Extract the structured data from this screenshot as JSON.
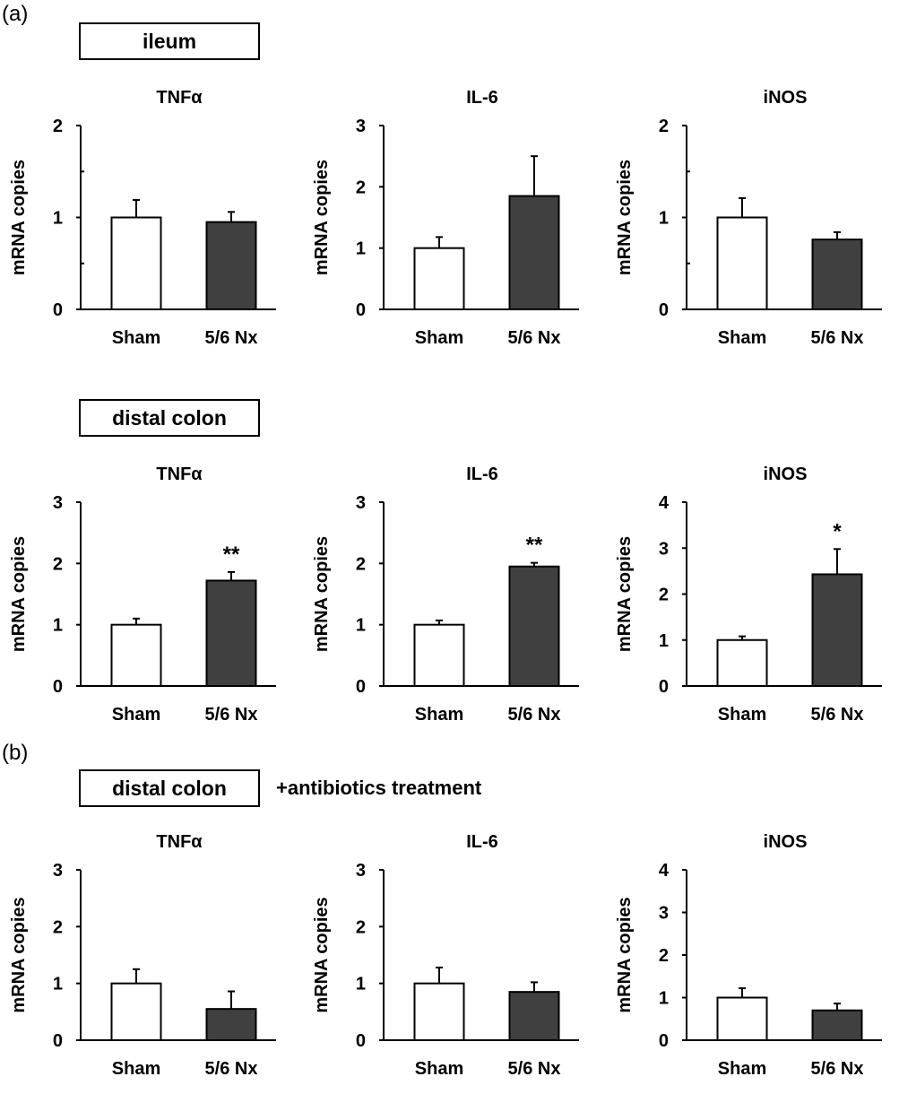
{
  "panels": {
    "a_label": "(a)",
    "b_label": "(b)"
  },
  "sections": {
    "ileum": "ileum",
    "colon_a": "distal colon",
    "colon_b": "distal colon",
    "antibiotics_note": "+antibiotics treatment"
  },
  "colors": {
    "sham_fill": "#ffffff",
    "nx_fill": "#404040",
    "axis": "#000000"
  },
  "chart_data": [
    {
      "type": "bar",
      "title": "TNFα",
      "ylabel": "mRNA copies",
      "categories": [
        "Sham",
        "5/6 Nx"
      ],
      "values": [
        1.0,
        0.95
      ],
      "errors": [
        0.19,
        0.11
      ],
      "ylim": [
        0,
        2
      ],
      "yticks": [
        0,
        1,
        2
      ],
      "significance": [
        "",
        ""
      ]
    },
    {
      "type": "bar",
      "title": "IL-6",
      "ylabel": "mRNA copies",
      "categories": [
        "Sham",
        "5/6 Nx"
      ],
      "values": [
        1.0,
        1.85
      ],
      "errors": [
        0.18,
        0.65
      ],
      "ylim": [
        0,
        3
      ],
      "yticks": [
        0,
        1,
        2,
        3
      ],
      "significance": [
        "",
        ""
      ]
    },
    {
      "type": "bar",
      "title": "iNOS",
      "ylabel": "mRNA copies",
      "categories": [
        "Sham",
        "5/6 Nx"
      ],
      "values": [
        1.0,
        0.76
      ],
      "errors": [
        0.21,
        0.08
      ],
      "ylim": [
        0,
        2
      ],
      "yticks": [
        0,
        1,
        2
      ],
      "significance": [
        "",
        ""
      ]
    },
    {
      "type": "bar",
      "title": "TNFα",
      "ylabel": "mRNA copies",
      "categories": [
        "Sham",
        "5/6 Nx"
      ],
      "values": [
        1.0,
        1.72
      ],
      "errors": [
        0.1,
        0.14
      ],
      "ylim": [
        0,
        3
      ],
      "yticks": [
        0,
        1,
        2,
        3
      ],
      "significance": [
        "",
        "**"
      ]
    },
    {
      "type": "bar",
      "title": "IL-6",
      "ylabel": "mRNA copies",
      "categories": [
        "Sham",
        "5/6 Nx"
      ],
      "values": [
        1.0,
        1.95
      ],
      "errors": [
        0.07,
        0.06
      ],
      "ylim": [
        0,
        3
      ],
      "yticks": [
        0,
        1,
        2,
        3
      ],
      "significance": [
        "",
        "**"
      ]
    },
    {
      "type": "bar",
      "title": "iNOS",
      "ylabel": "mRNA copies",
      "categories": [
        "Sham",
        "5/6 Nx"
      ],
      "values": [
        1.0,
        2.43
      ],
      "errors": [
        0.08,
        0.55
      ],
      "ylim": [
        0,
        4
      ],
      "yticks": [
        0,
        1,
        2,
        3,
        4
      ],
      "significance": [
        "",
        "*"
      ]
    },
    {
      "type": "bar",
      "title": "TNFα",
      "ylabel": "mRNA copies",
      "categories": [
        "Sham",
        "5/6 Nx"
      ],
      "values": [
        1.0,
        0.55
      ],
      "errors": [
        0.25,
        0.31
      ],
      "ylim": [
        0,
        3
      ],
      "yticks": [
        0,
        1,
        2,
        3
      ],
      "significance": [
        "",
        ""
      ]
    },
    {
      "type": "bar",
      "title": "IL-6",
      "ylabel": "mRNA copies",
      "categories": [
        "Sham",
        "5/6 Nx"
      ],
      "values": [
        1.0,
        0.85
      ],
      "errors": [
        0.28,
        0.17
      ],
      "ylim": [
        0,
        3
      ],
      "yticks": [
        0,
        1,
        2,
        3
      ],
      "significance": [
        "",
        ""
      ]
    },
    {
      "type": "bar",
      "title": "iNOS",
      "ylabel": "mRNA copies",
      "categories": [
        "Sham",
        "5/6 Nx"
      ],
      "values": [
        1.0,
        0.7
      ],
      "errors": [
        0.22,
        0.16
      ],
      "ylim": [
        0,
        4
      ],
      "yticks": [
        0,
        1,
        2,
        3,
        4
      ],
      "significance": [
        "",
        ""
      ]
    }
  ]
}
